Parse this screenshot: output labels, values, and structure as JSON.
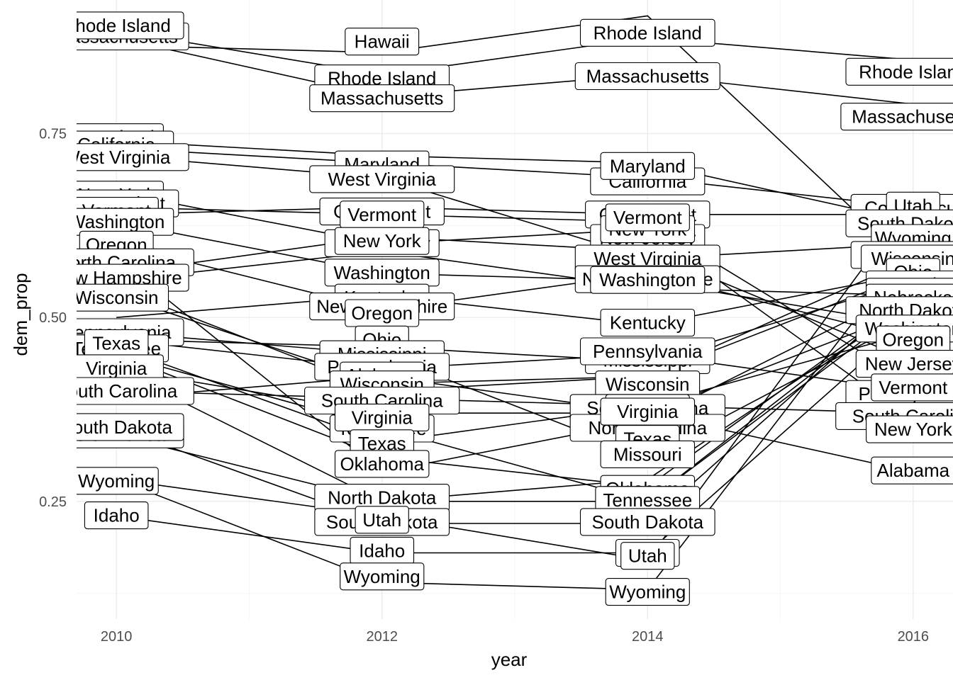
{
  "chart_data": {
    "type": "line",
    "title": "",
    "xlabel": "year",
    "ylabel": "dem_prop",
    "x_ticks": [
      "2010",
      "2012",
      "2014",
      "2016"
    ],
    "y_ticks": [
      "0.25",
      "0.50",
      "0.75"
    ],
    "xlim": [
      2009.7,
      2016.3
    ],
    "ylim": [
      0.09,
      0.92
    ],
    "grid": true,
    "legend": "none",
    "line_color": "#000000",
    "x": [
      2010,
      2012,
      2014,
      2016
    ],
    "series": [
      {
        "name": "Rhode Island",
        "values": [
          0.89,
          0.83,
          0.88,
          0.85
        ]
      },
      {
        "name": "Massachusetts",
        "values": [
          0.88,
          0.8,
          0.83,
          0.79
        ]
      },
      {
        "name": "Hawaii",
        "values": [
          0.87,
          0.86,
          0.91,
          0.57
        ]
      },
      {
        "name": "Maryland",
        "values": [
          0.74,
          0.72,
          0.71,
          0.63
        ]
      },
      {
        "name": "California",
        "values": [
          0.73,
          0.71,
          0.69,
          0.65
        ]
      },
      {
        "name": "West Virginia",
        "values": [
          0.72,
          0.69,
          0.58,
          0.6
        ]
      },
      {
        "name": "New York",
        "values": [
          0.67,
          0.6,
          0.62,
          0.36
        ]
      },
      {
        "name": "Vermont",
        "values": [
          0.65,
          0.64,
          0.63,
          0.41
        ]
      },
      {
        "name": "Connecticut",
        "values": [
          0.64,
          0.65,
          0.64,
          0.64
        ]
      },
      {
        "name": "Washington",
        "values": [
          0.63,
          0.56,
          0.55,
          0.49
        ]
      },
      {
        "name": "Oregon",
        "values": [
          0.6,
          0.51,
          0.56,
          0.47
        ]
      },
      {
        "name": "North Carolina",
        "values": [
          0.58,
          0.29,
          0.36,
          0.54
        ]
      },
      {
        "name": "New Hampshire",
        "values": [
          0.55,
          0.59,
          0.54,
          0.53
        ]
      },
      {
        "name": "Wisconsin",
        "values": [
          0.53,
          0.41,
          0.42,
          0.58
        ]
      },
      {
        "name": "Kentucky",
        "values": [
          0.5,
          0.53,
          0.49,
          0.56
        ]
      },
      {
        "name": "Pennsylvania",
        "values": [
          0.47,
          0.43,
          0.45,
          0.4
        ]
      },
      {
        "name": "Texas",
        "values": [
          0.46,
          0.33,
          0.38,
          0.48
        ]
      },
      {
        "name": "Tennessee",
        "values": [
          0.45,
          0.35,
          0.25,
          0.52
        ]
      },
      {
        "name": "Virginia",
        "values": [
          0.43,
          0.37,
          0.37,
          0.51
        ]
      },
      {
        "name": "South Carolina",
        "values": [
          0.4,
          0.39,
          0.38,
          0.37
        ]
      },
      {
        "name": "South Dakota",
        "values": [
          0.35,
          0.22,
          0.22,
          0.54
        ]
      },
      {
        "name": "North Dakota",
        "values": [
          0.34,
          0.25,
          0.28,
          0.52
        ]
      },
      {
        "name": "Oklahoma",
        "values": [
          0.45,
          0.31,
          0.27,
          0.53
        ]
      },
      {
        "name": "Mississippi",
        "values": [
          0.47,
          0.46,
          0.44,
          0.55
        ]
      },
      {
        "name": "Missouri",
        "values": [
          0.48,
          0.45,
          0.31,
          0.5
        ]
      },
      {
        "name": "New Jersey",
        "values": [
          0.56,
          0.61,
          0.59,
          0.44
        ]
      },
      {
        "name": "Alabama",
        "values": [
          0.39,
          0.42,
          0.37,
          0.29
        ]
      },
      {
        "name": "Utah",
        "values": [
          0.28,
          0.23,
          0.17,
          0.66
        ]
      },
      {
        "name": "Idaho",
        "values": [
          0.23,
          0.18,
          0.18,
          0.5
        ]
      },
      {
        "name": "Wyoming",
        "values": [
          0.28,
          0.14,
          0.13,
          0.6
        ]
      },
      {
        "name": "Ohio",
        "values": [
          0.54,
          0.4,
          0.42,
          0.56
        ]
      },
      {
        "name": "Nebraska",
        "values": [
          0.43,
          0.25,
          0.25,
          0.53
        ]
      }
    ],
    "labels": [
      {
        "text": "Massachusetts",
        "x": 2010,
        "y": 0.882
      },
      {
        "text": "Rhode Island",
        "x": 2010,
        "y": 0.897
      },
      {
        "text": "Hawaii",
        "x": 2012,
        "y": 0.875
      },
      {
        "text": "Rhode Island",
        "x": 2012,
        "y": 0.825
      },
      {
        "text": "Massachusetts",
        "x": 2012,
        "y": 0.798
      },
      {
        "text": "Rhode Island",
        "x": 2014,
        "y": 0.887
      },
      {
        "text": "Massachusetts",
        "x": 2014,
        "y": 0.828
      },
      {
        "text": "Rhode Island",
        "x": 2016,
        "y": 0.834
      },
      {
        "text": "Massachusetts",
        "x": 2016,
        "y": 0.773
      },
      {
        "text": "Maryland",
        "x": 2010,
        "y": 0.745
      },
      {
        "text": "California",
        "x": 2010,
        "y": 0.735
      },
      {
        "text": "West Virginia",
        "x": 2010,
        "y": 0.718
      },
      {
        "text": "New York",
        "x": 2010,
        "y": 0.667
      },
      {
        "text": "Connecticut",
        "x": 2010,
        "y": 0.655
      },
      {
        "text": "Vermont",
        "x": 2010,
        "y": 0.645
      },
      {
        "text": "Washington",
        "x": 2010,
        "y": 0.63
      },
      {
        "text": "Oregon",
        "x": 2010,
        "y": 0.599
      },
      {
        "text": "North Carolina",
        "x": 2010,
        "y": 0.575
      },
      {
        "text": "New Hampshire",
        "x": 2010,
        "y": 0.554
      },
      {
        "text": "Wisconsin",
        "x": 2010,
        "y": 0.527
      },
      {
        "text": "Pennsylvania",
        "x": 2010,
        "y": 0.48
      },
      {
        "text": "Tennessee",
        "x": 2010,
        "y": 0.458
      },
      {
        "text": "Texas",
        "x": 2010,
        "y": 0.465
      },
      {
        "text": "Virginia",
        "x": 2010,
        "y": 0.431
      },
      {
        "text": "South Carolina",
        "x": 2010,
        "y": 0.4
      },
      {
        "text": "North Dakota",
        "x": 2010,
        "y": 0.341
      },
      {
        "text": "South Dakota",
        "x": 2010,
        "y": 0.351
      },
      {
        "text": "Wyoming",
        "x": 2010,
        "y": 0.278
      },
      {
        "text": "Idaho",
        "x": 2010,
        "y": 0.231
      },
      {
        "text": "Maryland",
        "x": 2012,
        "y": 0.708
      },
      {
        "text": "West Virginia",
        "x": 2012,
        "y": 0.688
      },
      {
        "text": "Connecticut",
        "x": 2012,
        "y": 0.644
      },
      {
        "text": "Vermont",
        "x": 2012,
        "y": 0.64
      },
      {
        "text": "New Jersey",
        "x": 2012,
        "y": 0.601
      },
      {
        "text": "New York",
        "x": 2012,
        "y": 0.604
      },
      {
        "text": "Washington",
        "x": 2012,
        "y": 0.561
      },
      {
        "text": "Kentucky",
        "x": 2012,
        "y": 0.527
      },
      {
        "text": "New Hampshire",
        "x": 2012,
        "y": 0.515
      },
      {
        "text": "Oregon",
        "x": 2012,
        "y": 0.506
      },
      {
        "text": "Ohio",
        "x": 2012,
        "y": 0.47
      },
      {
        "text": "Mississippi",
        "x": 2012,
        "y": 0.45
      },
      {
        "text": "Pennsylvania",
        "x": 2012,
        "y": 0.433
      },
      {
        "text": "Alabama",
        "x": 2012,
        "y": 0.421
      },
      {
        "text": "Wisconsin",
        "x": 2012,
        "y": 0.409
      },
      {
        "text": "South Carolina",
        "x": 2012,
        "y": 0.387
      },
      {
        "text": "Tennessee",
        "x": 2012,
        "y": 0.349
      },
      {
        "text": "Virginia",
        "x": 2012,
        "y": 0.364
      },
      {
        "text": "Texas",
        "x": 2012,
        "y": 0.329
      },
      {
        "text": "Oklahoma",
        "x": 2012,
        "y": 0.301
      },
      {
        "text": "Nebraska",
        "x": 2012,
        "y": 0.25
      },
      {
        "text": "North Dakota",
        "x": 2012,
        "y": 0.255
      },
      {
        "text": "South Dakota",
        "x": 2012,
        "y": 0.222
      },
      {
        "text": "Utah",
        "x": 2012,
        "y": 0.225
      },
      {
        "text": "Idaho",
        "x": 2012,
        "y": 0.183
      },
      {
        "text": "Wyoming",
        "x": 2012,
        "y": 0.148
      },
      {
        "text": "California",
        "x": 2014,
        "y": 0.685
      },
      {
        "text": "Maryland",
        "x": 2014,
        "y": 0.706
      },
      {
        "text": "Connecticut",
        "x": 2014,
        "y": 0.64
      },
      {
        "text": "New Jersey",
        "x": 2014,
        "y": 0.608
      },
      {
        "text": "New York",
        "x": 2014,
        "y": 0.62
      },
      {
        "text": "Vermont",
        "x": 2014,
        "y": 0.636
      },
      {
        "text": "West Virginia",
        "x": 2014,
        "y": 0.58
      },
      {
        "text": "New Hampshire",
        "x": 2014,
        "y": 0.552
      },
      {
        "text": "Washington",
        "x": 2014,
        "y": 0.551
      },
      {
        "text": "Kentucky",
        "x": 2014,
        "y": 0.493
      },
      {
        "text": "Mississippi",
        "x": 2014,
        "y": 0.442
      },
      {
        "text": "Pennsylvania",
        "x": 2014,
        "y": 0.454
      },
      {
        "text": "Wisconsin",
        "x": 2014,
        "y": 0.409
      },
      {
        "text": "South Carolina",
        "x": 2014,
        "y": 0.377
      },
      {
        "text": "Alabama",
        "x": 2014,
        "y": 0.377
      },
      {
        "text": "North Carolina",
        "x": 2014,
        "y": 0.35
      },
      {
        "text": "Virginia",
        "x": 2014,
        "y": 0.372
      },
      {
        "text": "Texas",
        "x": 2014,
        "y": 0.335
      },
      {
        "text": "Missouri",
        "x": 2014,
        "y": 0.314
      },
      {
        "text": "Oklahoma",
        "x": 2014,
        "y": 0.267
      },
      {
        "text": "Nebraska",
        "x": 2014,
        "y": 0.252
      },
      {
        "text": "Tennessee",
        "x": 2014,
        "y": 0.252
      },
      {
        "text": "South Dakota",
        "x": 2014,
        "y": 0.222
      },
      {
        "text": "Idaho",
        "x": 2014,
        "y": 0.18
      },
      {
        "text": "Utah",
        "x": 2014,
        "y": 0.176
      },
      {
        "text": "Wyoming",
        "x": 2014,
        "y": 0.127
      },
      {
        "text": "Connecticut",
        "x": 2016,
        "y": 0.649
      },
      {
        "text": "Utah",
        "x": 2016,
        "y": 0.652
      },
      {
        "text": "South Dakota",
        "x": 2016,
        "y": 0.628
      },
      {
        "text": "Idaho",
        "x": 2016,
        "y": 0.6
      },
      {
        "text": "Wyoming",
        "x": 2016,
        "y": 0.608
      },
      {
        "text": "Mississippi",
        "x": 2016,
        "y": 0.585
      },
      {
        "text": "Wisconsin",
        "x": 2016,
        "y": 0.58
      },
      {
        "text": "Ohio",
        "x": 2016,
        "y": 0.562
      },
      {
        "text": "Kentucky",
        "x": 2016,
        "y": 0.545
      },
      {
        "text": "Oklahoma",
        "x": 2016,
        "y": 0.535
      },
      {
        "text": "Nebraska",
        "x": 2016,
        "y": 0.527
      },
      {
        "text": "North Dakota",
        "x": 2016,
        "y": 0.51
      },
      {
        "text": "Washington",
        "x": 2016,
        "y": 0.485
      },
      {
        "text": "Oregon",
        "x": 2016,
        "y": 0.47
      },
      {
        "text": "New Jersey",
        "x": 2016,
        "y": 0.437
      },
      {
        "text": "Pennsylvania",
        "x": 2016,
        "y": 0.396
      },
      {
        "text": "Vermont",
        "x": 2016,
        "y": 0.405
      },
      {
        "text": "South Carolina",
        "x": 2016,
        "y": 0.366
      },
      {
        "text": "New York",
        "x": 2016,
        "y": 0.348
      },
      {
        "text": "Alabama",
        "x": 2016,
        "y": 0.292
      }
    ]
  }
}
